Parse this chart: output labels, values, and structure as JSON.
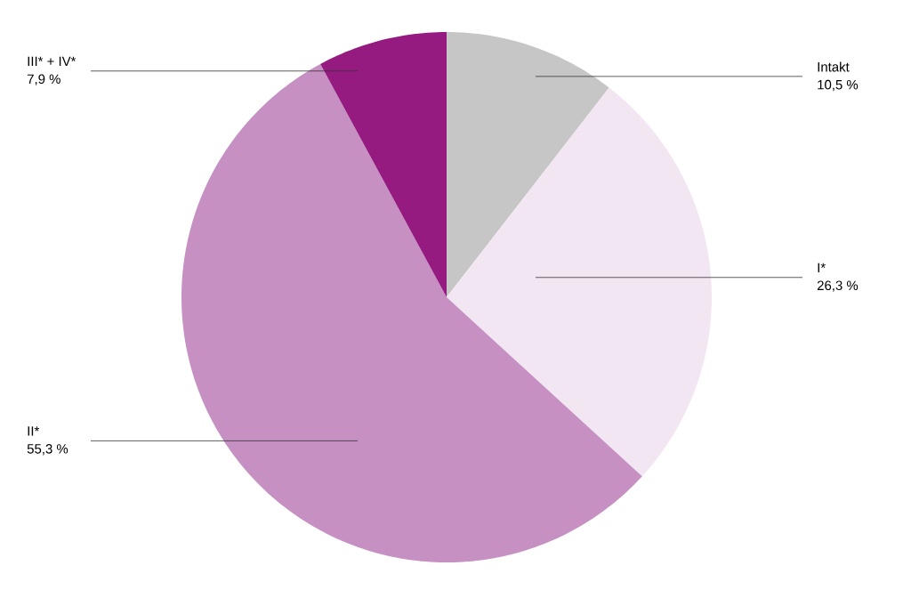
{
  "chart_data": {
    "type": "pie",
    "categories": [
      "Intakt",
      "I*",
      "II*",
      "III* + IV*"
    ],
    "values": [
      10.5,
      26.3,
      55.3,
      7.9
    ],
    "colors": [
      "#c6c6c6",
      "#f2e6f3",
      "#c690c3",
      "#951b81"
    ],
    "value_labels": [
      "10,5 %",
      "26,3 %",
      "55,3 %",
      "7,9 %"
    ]
  }
}
